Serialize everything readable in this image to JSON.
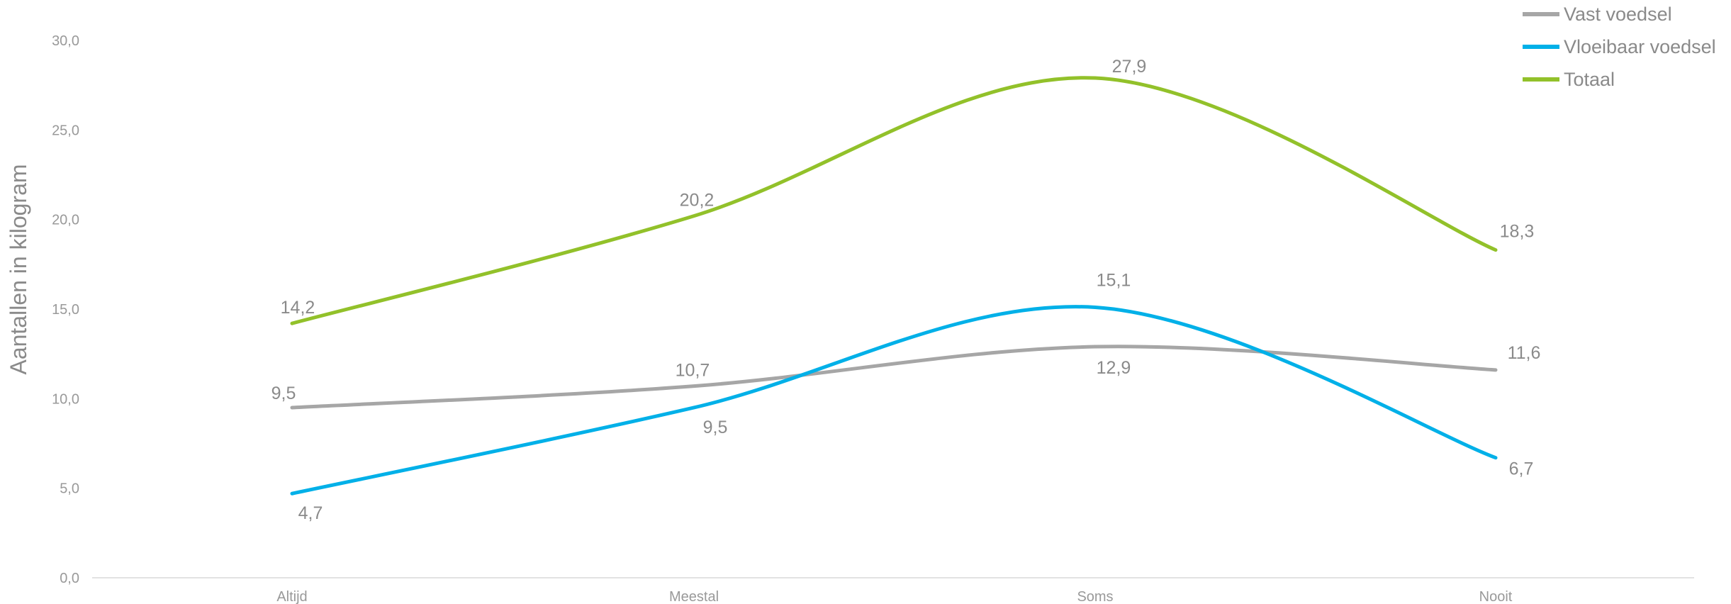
{
  "chart_data": {
    "type": "line",
    "smooth": true,
    "categories": [
      "Altijd",
      "Meestal",
      "Soms",
      "Nooit"
    ],
    "series": [
      {
        "name": "Vast voedsel",
        "values": [
          9.5,
          10.7,
          12.9,
          11.6
        ],
        "color": "#a6a6a6",
        "labels": [
          "9,5",
          "10,7",
          "12,9",
          "11,6"
        ]
      },
      {
        "name": "Vloeibaar voedsel",
        "values": [
          4.7,
          9.5,
          15.1,
          6.7
        ],
        "color": "#00b0e8",
        "labels": [
          "4,7",
          "9,5",
          "15,1",
          "6,7"
        ]
      },
      {
        "name": "Totaal",
        "values": [
          14.2,
          20.2,
          27.9,
          18.3
        ],
        "color": "#92c12a",
        "labels": [
          "14,2",
          "20,2",
          "27,9",
          "18,3"
        ]
      }
    ],
    "ylabel": "Aantallen in kilogram",
    "xlabel": "",
    "ylim": [
      0,
      30
    ],
    "yticks": [
      {
        "value": 0,
        "label": "0,0"
      },
      {
        "value": 5,
        "label": "5,0"
      },
      {
        "value": 10,
        "label": "10,0"
      },
      {
        "value": 15,
        "label": "15,0"
      },
      {
        "value": 20,
        "label": "20,0"
      },
      {
        "value": 25,
        "label": "25,0"
      },
      {
        "value": 30,
        "label": "30,0"
      }
    ],
    "grid": false,
    "legend": "top-right"
  }
}
